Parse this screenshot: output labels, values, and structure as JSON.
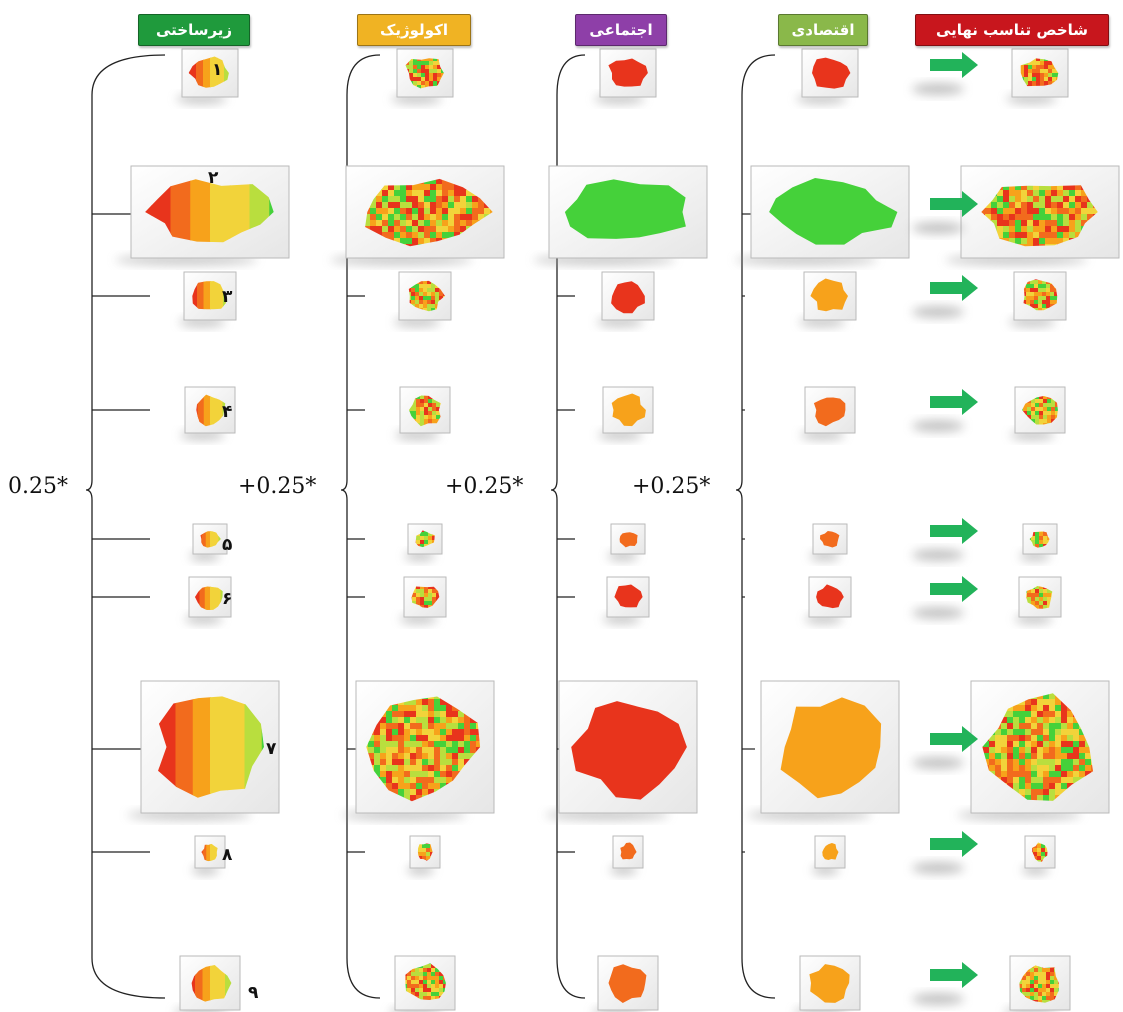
{
  "headers": {
    "infrastructure": "زیرساختی",
    "ecological": "اکولوژیک",
    "social": "اجتماعی",
    "economic": "اقتصادی",
    "final_index": "شاخص تناسب نهایی"
  },
  "header_colors": {
    "infrastructure": "#1f9a3c",
    "ecological": "#f0b323",
    "social": "#8e3fa8",
    "economic": "#8ab84a",
    "final_index": "#c8161d"
  },
  "coefficients": {
    "c1": "0.25*",
    "c2": "+0.25*",
    "c3": "+0.25*",
    "c4": "+0.25*"
  },
  "parcel_numbers": [
    "۱",
    "۲",
    "۳",
    "۴",
    "۵",
    "۶",
    "۷",
    "۸",
    "۹"
  ],
  "arrow_color": "#22b35a",
  "map_palette": [
    "#e8341c",
    "#f26b1d",
    "#f7a21b",
    "#f2d33a",
    "#b9de3e",
    "#45d13a"
  ]
}
